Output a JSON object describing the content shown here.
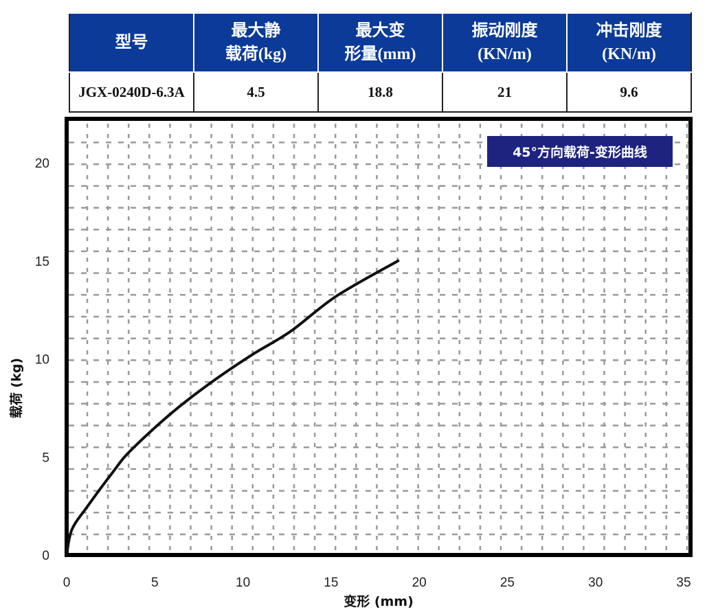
{
  "table": {
    "headers": [
      {
        "line1": "型号",
        "line2": ""
      },
      {
        "line1": "最大静",
        "line2": "载荷(kg)"
      },
      {
        "line1": "最大变",
        "line2": "形量(mm)"
      },
      {
        "line1": "振动刚度",
        "line2": "(KN/m)"
      },
      {
        "line1": "冲击刚度",
        "line2": "(KN/m)"
      }
    ],
    "row": [
      "JGX-0240D-6.3A",
      "4.5",
      "18.8",
      "21",
      "9.6"
    ],
    "header_color": "#0b3a98"
  },
  "chart_data": {
    "type": "line",
    "legend": "45°方向载荷-变形曲线",
    "legend_color": "#1e2380",
    "legend_placement": "top-right",
    "xlabel": "变形 (mm)",
    "ylabel": "载荷 (kg)",
    "xlim": [
      0,
      35
    ],
    "ylim": [
      0,
      22
    ],
    "xticks": [
      0,
      5,
      10,
      15,
      20,
      25,
      30,
      35
    ],
    "yticks": [
      0,
      5,
      10,
      15,
      20
    ],
    "grid": true,
    "line_color": "#111111",
    "x": [
      0,
      0.3,
      1.2,
      2.6,
      3.6,
      5.9,
      8.2,
      10.5,
      12.7,
      15.3,
      18.8
    ],
    "y": [
      0,
      1.3,
      2.5,
      4.2,
      5.3,
      7.2,
      8.8,
      10.2,
      11.4,
      13.2,
      15.0
    ]
  }
}
